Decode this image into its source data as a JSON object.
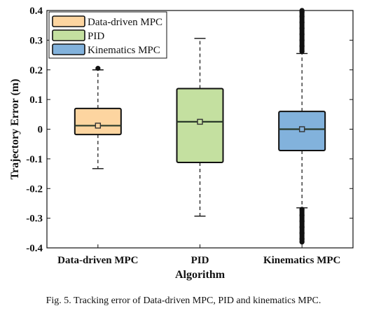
{
  "caption": "Fig. 5.  Tracking error of Data-driven MPC, PID and kinematics MPC.",
  "chart_data": {
    "type": "box",
    "title": "",
    "xlabel": "Algorithm",
    "ylabel": "Trajectory Error (m)",
    "ylim": [
      -0.4,
      0.4
    ],
    "yticks": [
      -0.4,
      -0.3,
      -0.2,
      -0.1,
      0,
      0.1,
      0.2,
      0.3,
      0.4
    ],
    "ytick_labels": [
      "-0.4",
      "-0.3",
      "-0.2",
      "-0.1",
      "0",
      "0.1",
      "0.2",
      "0.3",
      "0.4"
    ],
    "grid": false,
    "legend_position": "top-left",
    "categories": [
      "Data-driven MPC",
      "PID",
      "Kinematics MPC"
    ],
    "series": [
      {
        "name": "Data-driven MPC",
        "color": "#fdd5a0",
        "whisker_low": -0.133,
        "q1": -0.018,
        "median": 0.012,
        "q3": 0.07,
        "whisker_high": 0.2,
        "mean": 0.012,
        "outliers": [
          0.205
        ]
      },
      {
        "name": "PID",
        "color": "#c4e0a0",
        "whisker_low": -0.293,
        "q1": -0.112,
        "median": 0.025,
        "q3": 0.137,
        "whisker_high": 0.306,
        "mean": 0.025,
        "outliers": []
      },
      {
        "name": "Kinematics MPC",
        "color": "#82b2dc",
        "whisker_low": -0.265,
        "q1": -0.072,
        "median": 0.0,
        "q3": 0.06,
        "whisker_high": 0.255,
        "mean": 0.0,
        "outliers": [
          0.262,
          0.28,
          0.3,
          0.32,
          0.34,
          0.36,
          0.38,
          0.395,
          0.4,
          -0.27,
          -0.29,
          -0.31,
          -0.33,
          -0.35,
          -0.37,
          -0.38
        ]
      }
    ]
  }
}
